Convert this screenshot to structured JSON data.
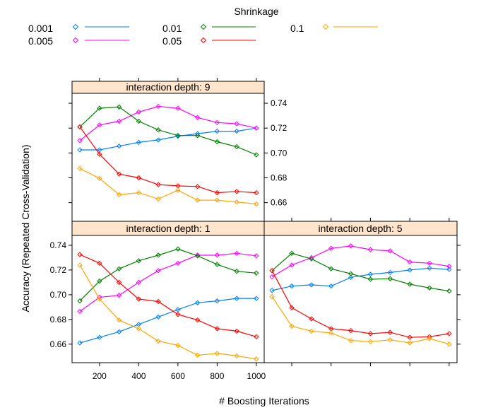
{
  "chart_data": {
    "type": "line",
    "xlabel": "# Boosting Iterations",
    "ylabel": "Accuracy (Repeated Cross-Validation)",
    "xlim": [
      60,
      1040
    ],
    "ylim": [
      0.645,
      0.748
    ],
    "xticks": [
      200,
      400,
      600,
      800,
      1000
    ],
    "yticks": [
      0.66,
      0.68,
      0.7,
      0.72,
      0.74
    ],
    "x": [
      100,
      200,
      300,
      400,
      500,
      600,
      700,
      800,
      900,
      1000
    ],
    "legend": {
      "title": "Shrinkage",
      "entries": [
        {
          "label": "0.001",
          "color": "#0080ff"
        },
        {
          "label": "0.005",
          "color": "#ff00ff"
        },
        {
          "label": "0.01",
          "color": "#008000"
        },
        {
          "label": "0.05",
          "color": "#ff0000"
        },
        {
          "label": "0.1",
          "color": "#ffa500"
        }
      ]
    },
    "panels": [
      {
        "title": "interaction depth: 9",
        "series": [
          {
            "name": "0.001",
            "color": "#0080ff",
            "values": [
              0.7025,
              0.7025,
              0.7055,
              0.7085,
              0.7105,
              0.7135,
              0.7155,
              0.7175,
              0.7175,
              0.72
            ]
          },
          {
            "name": "0.005",
            "color": "#ff00ff",
            "values": [
              0.71,
              0.7225,
              0.7255,
              0.733,
              0.7375,
              0.736,
              0.7285,
              0.7245,
              0.7235,
              0.72
            ]
          },
          {
            "name": "0.01",
            "color": "#008000",
            "values": [
              0.721,
              0.736,
              0.737,
              0.7255,
              0.7185,
              0.714,
              0.714,
              0.709,
              0.705,
              0.6985
            ]
          },
          {
            "name": "0.05",
            "color": "#ff0000",
            "values": [
              0.721,
              0.699,
              0.683,
              0.68,
              0.6745,
              0.6735,
              0.673,
              0.668,
              0.669,
              0.668
            ]
          },
          {
            "name": "0.1",
            "color": "#ffa500",
            "values": [
              0.6875,
              0.6795,
              0.6665,
              0.668,
              0.663,
              0.67,
              0.662,
              0.662,
              0.6605,
              0.659
            ]
          }
        ]
      },
      {
        "title": "interaction depth: 1",
        "series": [
          {
            "name": "0.001",
            "color": "#0080ff",
            "values": [
              0.661,
              0.6655,
              0.67,
              0.676,
              0.682,
              0.688,
              0.6935,
              0.695,
              0.697,
              0.697
            ]
          },
          {
            "name": "0.005",
            "color": "#ff00ff",
            "values": [
              0.6865,
              0.698,
              0.6995,
              0.71,
              0.7195,
              0.7255,
              0.732,
              0.732,
              0.7335,
              0.7315
            ]
          },
          {
            "name": "0.01",
            "color": "#008000",
            "values": [
              0.695,
              0.711,
              0.721,
              0.7275,
              0.732,
              0.737,
              0.7315,
              0.7245,
              0.719,
              0.7175
            ]
          },
          {
            "name": "0.05",
            "color": "#ff0000",
            "values": [
              0.7325,
              0.7255,
              0.71,
              0.6965,
              0.6945,
              0.684,
              0.6795,
              0.6725,
              0.6705,
              0.666
            ]
          },
          {
            "name": "0.1",
            "color": "#ffa500",
            "values": [
              0.724,
              0.6965,
              0.6795,
              0.6725,
              0.6625,
              0.659,
              0.651,
              0.6525,
              0.6505,
              0.648
            ]
          }
        ]
      },
      {
        "title": "interaction depth: 5",
        "series": [
          {
            "name": "0.001",
            "color": "#0080ff",
            "values": [
              0.7035,
              0.707,
              0.708,
              0.707,
              0.714,
              0.7165,
              0.718,
              0.72,
              0.7215,
              0.7205
            ]
          },
          {
            "name": "0.005",
            "color": "#ff00ff",
            "values": [
              0.7145,
              0.724,
              0.73,
              0.7375,
              0.7395,
              0.7365,
              0.7355,
              0.7265,
              0.7255,
              0.723
            ]
          },
          {
            "name": "0.01",
            "color": "#008000",
            "values": [
              0.7195,
              0.7335,
              0.729,
              0.721,
              0.717,
              0.7125,
              0.713,
              0.7085,
              0.7055,
              0.703
            ]
          },
          {
            "name": "0.05",
            "color": "#ff0000",
            "values": [
              0.7195,
              0.6895,
              0.6805,
              0.6725,
              0.671,
              0.6685,
              0.6695,
              0.6655,
              0.666,
              0.6685
            ]
          },
          {
            "name": "0.1",
            "color": "#ffa500",
            "values": [
              0.6985,
              0.6745,
              0.6705,
              0.669,
              0.663,
              0.662,
              0.6635,
              0.661,
              0.6645,
              0.66
            ]
          }
        ]
      }
    ]
  }
}
